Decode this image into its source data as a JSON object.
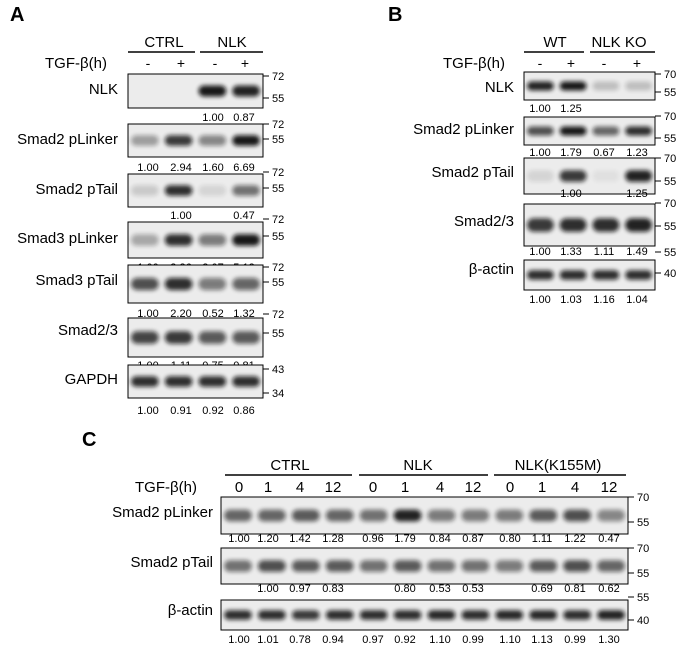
{
  "panels": {
    "A": {
      "label": "A",
      "groups": [
        "CTRL",
        "NLK"
      ],
      "treatment_label": "TGF-β(h)",
      "lanes": [
        "-",
        "+",
        "-",
        "+"
      ],
      "blots": [
        {
          "name": "NLK",
          "mw": [
            "72",
            "55"
          ],
          "quant": [
            "",
            "",
            "1.00",
            "0.87"
          ]
        },
        {
          "name": "Smad2 pLinker",
          "mw": [
            "72",
            "55"
          ],
          "quant": [
            "1.00",
            "2.94",
            "1.60",
            "6.69"
          ]
        },
        {
          "name": "Smad2 pTail",
          "mw": [
            "72",
            "55"
          ],
          "quant": [
            "",
            "1.00",
            "",
            "0.47"
          ]
        },
        {
          "name": "Smad3 pLinker",
          "mw": [
            "72",
            "55"
          ],
          "quant": [
            "1.00",
            "3.36",
            "2.07",
            "5.13"
          ]
        },
        {
          "name": "Smad3 pTail",
          "mw": [
            "72",
            "55"
          ],
          "quant": [
            "1.00",
            "2.20",
            "0.52",
            "1.32"
          ]
        },
        {
          "name": "Smad2/3",
          "mw": [
            "72",
            "55"
          ],
          "quant": [
            "1.00",
            "1.11",
            "0.75",
            "0.81"
          ]
        },
        {
          "name": "GAPDH",
          "mw": [
            "43",
            "34"
          ],
          "quant": [
            "1.00",
            "0.91",
            "0.92",
            "0.86"
          ]
        }
      ]
    },
    "B": {
      "label": "B",
      "groups": [
        "WT",
        "NLK KO"
      ],
      "treatment_label": "TGF-β(h)",
      "lanes": [
        "-",
        "+",
        "-",
        "+"
      ],
      "blots": [
        {
          "name": "NLK",
          "mw": [
            "70",
            "55"
          ],
          "quant": [
            "1.00",
            "1.25",
            "",
            ""
          ]
        },
        {
          "name": "Smad2 pLinker",
          "mw": [
            "70",
            "55"
          ],
          "quant": [
            "1.00",
            "1.79",
            "0.67",
            "1.23"
          ]
        },
        {
          "name": "Smad2 pTail",
          "mw": [
            "70",
            "55"
          ],
          "quant": [
            "",
            "1.00",
            "",
            "1.25"
          ]
        },
        {
          "name": "Smad2/3",
          "mw": [
            "70",
            "55"
          ],
          "quant": [
            "1.00",
            "1.33",
            "1.11",
            "1.49"
          ]
        },
        {
          "name": "β-actin",
          "mw": [
            "55",
            "40"
          ],
          "quant": [
            "1.00",
            "1.03",
            "1.16",
            "1.04"
          ]
        }
      ]
    },
    "C": {
      "label": "C",
      "groups": [
        "CTRL",
        "NLK",
        "NLK(K155M)"
      ],
      "treatment_label": "TGF-β(h)",
      "lanes": [
        "0",
        "1",
        "4",
        "12",
        "0",
        "1",
        "4",
        "12",
        "0",
        "1",
        "4",
        "12"
      ],
      "blots": [
        {
          "name": "Smad2 pLinker",
          "mw": [
            "70",
            "55"
          ],
          "quant": [
            "1.00",
            "1.20",
            "1.42",
            "1.28",
            "0.96",
            "1.79",
            "0.84",
            "0.87",
            "0.80",
            "1.11",
            "1.22",
            "0.47"
          ]
        },
        {
          "name": "Smad2 pTail",
          "mw": [
            "70",
            "55"
          ],
          "quant": [
            "",
            "1.00",
            "0.97",
            "0.83",
            "",
            "0.80",
            "0.53",
            "0.53",
            "",
            "0.69",
            "0.81",
            "0.62"
          ]
        },
        {
          "name": "β-actin",
          "mw": [
            "55",
            "40"
          ],
          "quant": [
            "1.00",
            "1.01",
            "0.78",
            "0.94",
            "0.97",
            "0.92",
            "1.10",
            "0.99",
            "1.10",
            "1.13",
            "0.99",
            "1.30"
          ]
        }
      ]
    }
  },
  "band_intensity": {
    "A": [
      [
        0.0,
        0.0,
        0.95,
        0.9
      ],
      [
        0.35,
        0.8,
        0.45,
        0.95
      ],
      [
        0.15,
        0.85,
        0.1,
        0.55
      ],
      [
        0.3,
        0.85,
        0.5,
        0.95
      ],
      [
        0.7,
        0.85,
        0.5,
        0.6
      ],
      [
        0.75,
        0.8,
        0.65,
        0.65
      ],
      [
        0.85,
        0.85,
        0.85,
        0.85
      ]
    ],
    "B": [
      [
        0.9,
        0.95,
        0.2,
        0.2
      ],
      [
        0.7,
        0.95,
        0.6,
        0.85
      ],
      [
        0.1,
        0.8,
        0.05,
        0.9
      ],
      [
        0.8,
        0.85,
        0.85,
        0.9
      ],
      [
        0.85,
        0.85,
        0.85,
        0.85
      ]
    ],
    "C": [
      [
        0.6,
        0.6,
        0.65,
        0.6,
        0.55,
        0.9,
        0.5,
        0.5,
        0.5,
        0.65,
        0.7,
        0.45
      ],
      [
        0.55,
        0.7,
        0.65,
        0.65,
        0.55,
        0.65,
        0.55,
        0.55,
        0.5,
        0.65,
        0.7,
        0.6
      ],
      [
        0.85,
        0.85,
        0.8,
        0.85,
        0.85,
        0.85,
        0.88,
        0.85,
        0.88,
        0.88,
        0.85,
        0.9
      ]
    ]
  }
}
